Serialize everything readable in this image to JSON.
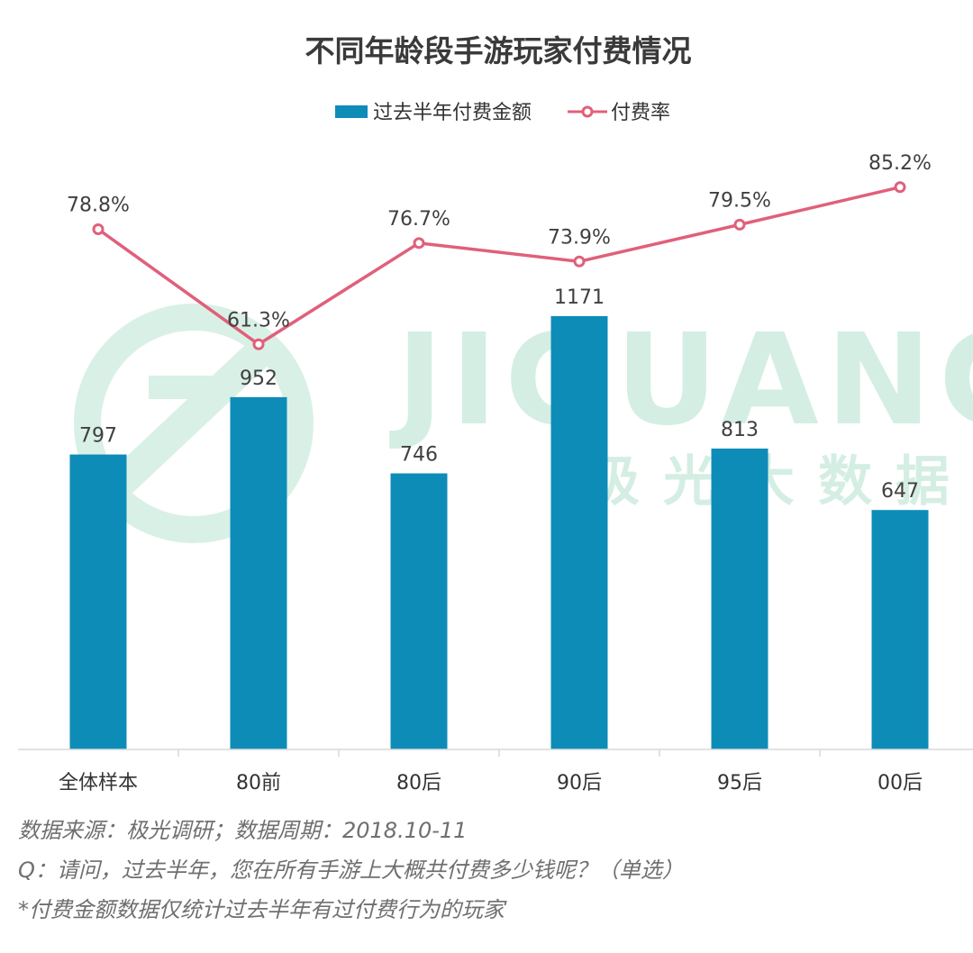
{
  "chart_data": {
    "type": "bar",
    "title": "不同年龄段手游玩家付费情况",
    "categories": [
      "全体样本",
      "80前",
      "80后",
      "90后",
      "95后",
      "00后"
    ],
    "series": [
      {
        "name": "过去半年付费金额",
        "type": "bar",
        "values": [
          797,
          952,
          746,
          1171,
          813,
          647
        ],
        "labels": [
          "797",
          "952",
          "746",
          "1171",
          "813",
          "647"
        ],
        "color": "#0e8cb8"
      },
      {
        "name": "付费率",
        "type": "line",
        "values": [
          78.8,
          61.3,
          76.7,
          73.9,
          79.5,
          85.2
        ],
        "labels": [
          "78.8%",
          "61.3%",
          "76.7%",
          "73.9%",
          "79.5%",
          "85.2%"
        ],
        "color": "#e0607a"
      }
    ],
    "bar_axis_range": [
      0,
      1200
    ],
    "line_axis_range": [
      0,
      100
    ],
    "legend_position": "top",
    "grid": false
  },
  "watermark": {
    "text": "JIGUANG",
    "subtext": "极光大数据"
  },
  "notes": {
    "source": "数据来源：极光调研；数据周期：2018.10-11",
    "question": "Q：请问，过去半年，您在所有手游上大概共付费多少钱呢？（单选）",
    "footnote": "*付费金额数据仅统计过去半年有过付费行为的玩家"
  }
}
